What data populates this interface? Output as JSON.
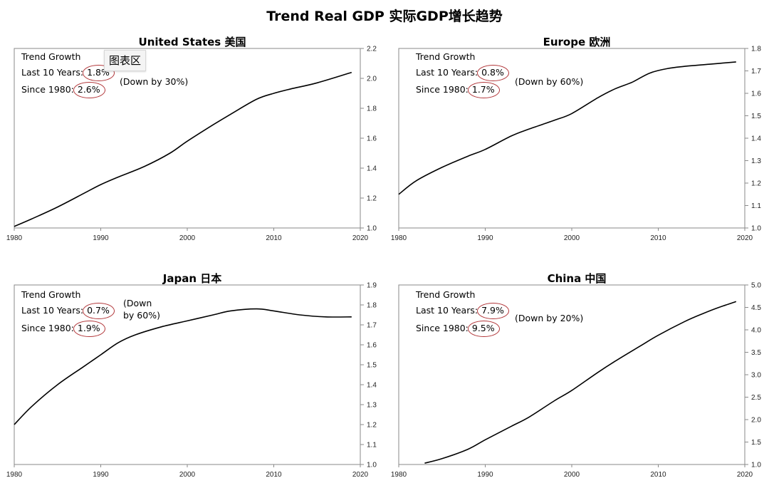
{
  "title": "Trend Real GDP 实际GDP增长趋势",
  "tooltip": "图表区",
  "annotation_label": "Trend Growth",
  "last10_label": "Last 10 Years:",
  "since1980_label": "Since 1980:",
  "colors": {
    "line": "#000000",
    "circle": "#b2373a",
    "frame": "#8a8a8a"
  },
  "chart_data": [
    {
      "type": "line",
      "title": "United States 美国",
      "xlim": [
        1980,
        2020
      ],
      "ylim": [
        1.0,
        2.2
      ],
      "x_ticks": [
        1980,
        1990,
        2000,
        2010,
        2020
      ],
      "y_ticks": [
        "1.0",
        "1.2",
        "1.4",
        "1.6",
        "1.8",
        "2.0",
        "2.2"
      ],
      "x": [
        1980,
        1982,
        1985,
        1988,
        1990,
        1992,
        1995,
        1998,
        2000,
        2003,
        2005,
        2008,
        2010,
        2012,
        2015,
        2019
      ],
      "y": [
        1.01,
        1.06,
        1.14,
        1.23,
        1.29,
        1.34,
        1.41,
        1.5,
        1.58,
        1.69,
        1.76,
        1.86,
        1.9,
        1.93,
        1.97,
        2.04
      ],
      "trend_last10": "1.8%",
      "trend_since1980": "2.6%",
      "note": "(Down by 30%)"
    },
    {
      "type": "line",
      "title": "Europe 欧洲",
      "xlim": [
        1980,
        2020
      ],
      "ylim": [
        1.0,
        1.8
      ],
      "x_ticks": [
        1980,
        1990,
        2000,
        2010,
        2020
      ],
      "y_ticks": [
        "1.0",
        "1.1",
        "1.2",
        "1.3",
        "1.4",
        "1.5",
        "1.6",
        "1.7",
        "1.8"
      ],
      "x": [
        1980,
        1982,
        1985,
        1988,
        1990,
        1993,
        1995,
        1998,
        2000,
        2003,
        2005,
        2007,
        2009,
        2011,
        2013,
        2016,
        2019
      ],
      "y": [
        1.15,
        1.21,
        1.27,
        1.32,
        1.35,
        1.41,
        1.44,
        1.48,
        1.51,
        1.58,
        1.62,
        1.65,
        1.69,
        1.71,
        1.72,
        1.73,
        1.74
      ],
      "trend_last10": "0.8%",
      "trend_since1980": "1.7%",
      "note": "(Down by 60%)"
    },
    {
      "type": "line",
      "title": "Japan 日本",
      "xlim": [
        1980,
        2020
      ],
      "ylim": [
        1.0,
        1.9
      ],
      "x_ticks": [
        1980,
        1990,
        2000,
        2010,
        2020
      ],
      "y_ticks": [
        "1.0",
        "1.1",
        "1.2",
        "1.3",
        "1.4",
        "1.5",
        "1.6",
        "1.7",
        "1.8",
        "1.9"
      ],
      "x": [
        1980,
        1982,
        1985,
        1988,
        1990,
        1992,
        1994,
        1997,
        2000,
        2003,
        2005,
        2008,
        2010,
        2013,
        2016,
        2019
      ],
      "y": [
        1.2,
        1.29,
        1.4,
        1.49,
        1.55,
        1.61,
        1.65,
        1.69,
        1.72,
        1.75,
        1.77,
        1.78,
        1.77,
        1.75,
        1.74,
        1.74
      ],
      "trend_last10": "0.7%",
      "trend_since1980": "1.9%",
      "note": "(Down by 60%)",
      "note_lines": [
        "(Down",
        "by 60%)"
      ]
    },
    {
      "type": "line",
      "title": "China 中国",
      "xlim": [
        1980,
        2020
      ],
      "ylim": [
        1.0,
        5.0
      ],
      "x_ticks": [
        1980,
        1990,
        2000,
        2010,
        2020
      ],
      "y_ticks": [
        "1.0",
        "1.5",
        "2.0",
        "2.5",
        "3.0",
        "3.5",
        "4.0",
        "4.5",
        "5.0"
      ],
      "x": [
        1983,
        1985,
        1988,
        1990,
        1993,
        1995,
        1998,
        2000,
        2003,
        2005,
        2008,
        2010,
        2013,
        2015,
        2017,
        2019
      ],
      "y": [
        1.03,
        1.13,
        1.34,
        1.55,
        1.85,
        2.05,
        2.42,
        2.65,
        3.05,
        3.3,
        3.65,
        3.88,
        4.18,
        4.35,
        4.5,
        4.63
      ],
      "trend_last10": "7.9%",
      "trend_since1980": "9.5%",
      "note": "(Down by 20%)"
    }
  ]
}
